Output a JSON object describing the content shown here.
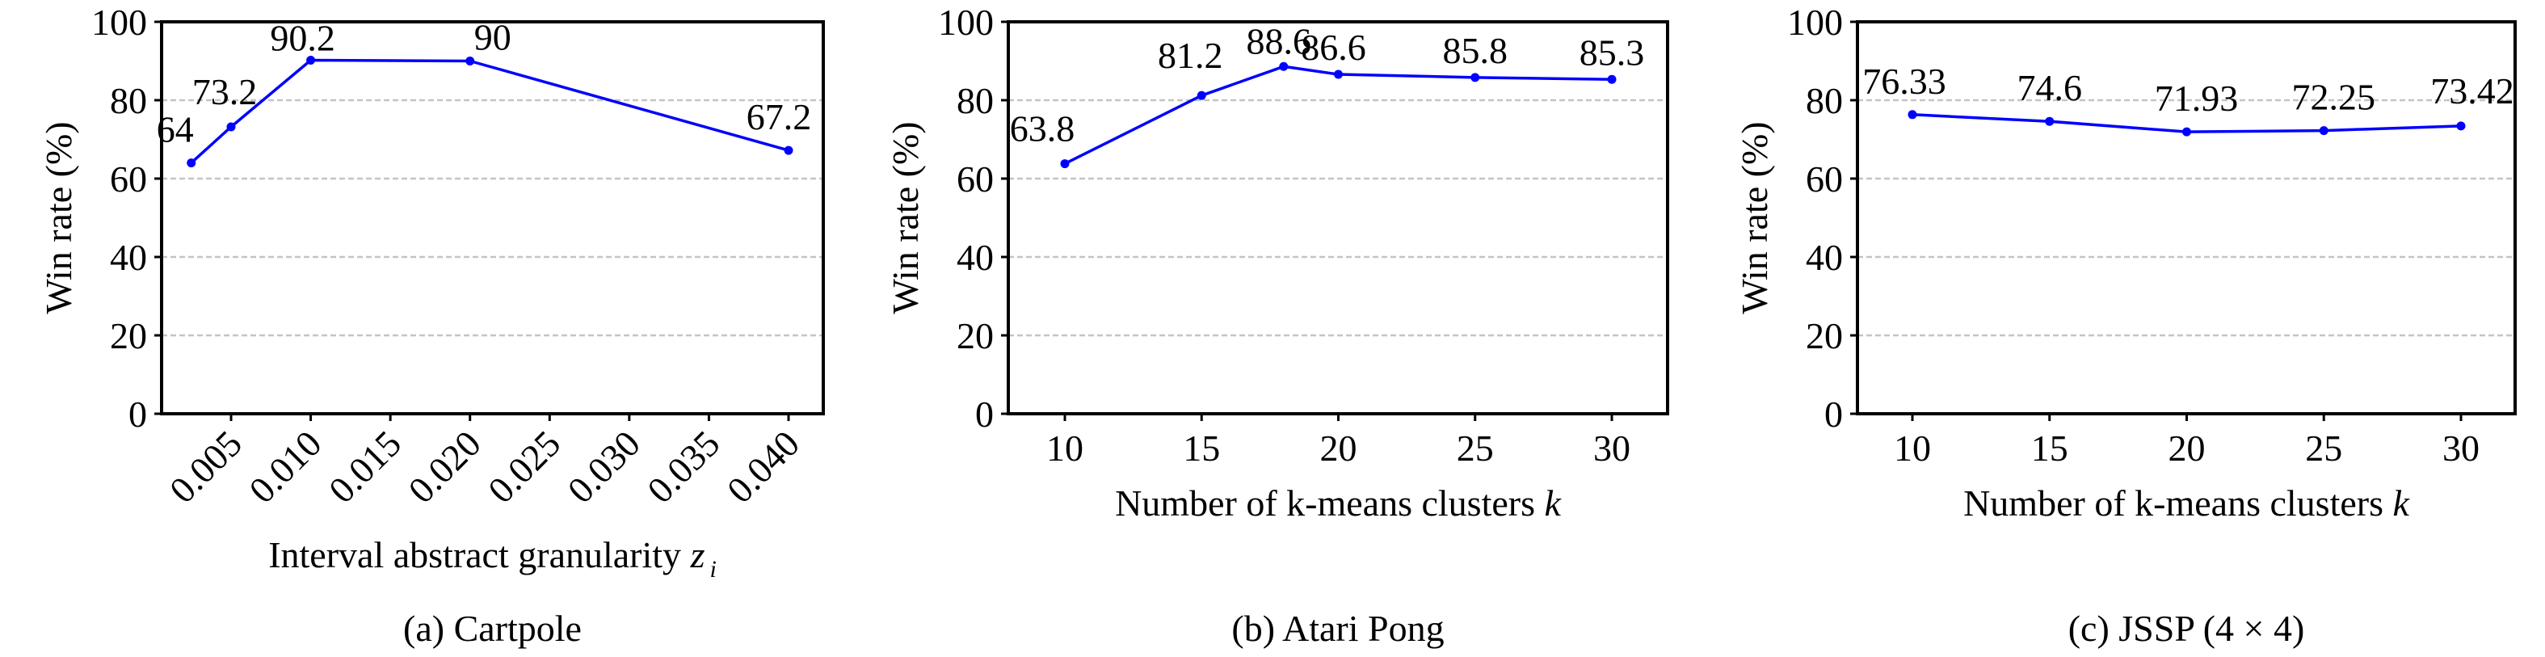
{
  "figure": {
    "panels": [
      {
        "id": "a",
        "caption": "(a) Cartpole"
      },
      {
        "id": "b",
        "caption": "(b) Atari Pong"
      },
      {
        "id": "c",
        "caption": "(c) JSSP (4 × 4)"
      }
    ]
  },
  "colors": {
    "series": "#0000ff",
    "grid": "#c4c4c4",
    "axis": "#000000"
  },
  "chart_data": [
    {
      "type": "line",
      "title": "(a) Cartpole",
      "xlabel": "Interval abstract granularity",
      "xlabel_math": "z",
      "xlabel_subscript": "i",
      "ylabel": "Win rate (%)",
      "ylim": [
        0,
        100
      ],
      "yticks": [
        0,
        20,
        40,
        60,
        80,
        100
      ],
      "xticks": [
        0.005,
        0.01,
        0.015,
        0.02,
        0.025,
        0.03,
        0.035,
        0.04
      ],
      "xtick_labels": [
        "0.005",
        "0.010",
        "0.015",
        "0.020",
        "0.025",
        "0.030",
        "0.035",
        "0.040"
      ],
      "xtick_rotation": 45,
      "grid": "y, dashed",
      "x": [
        0.0025,
        0.005,
        0.01,
        0.02,
        0.04
      ],
      "series": [
        {
          "name": "Win rate",
          "values": [
            64,
            73.2,
            90.2,
            90,
            67.2
          ],
          "labels": [
            "64",
            "73.2",
            "90.2",
            "90",
            "67.2"
          ]
        }
      ]
    },
    {
      "type": "line",
      "title": "(b) Atari Pong",
      "xlabel": "Number of k-means clusters",
      "xlabel_math": "k",
      "ylabel": "Win rate (%)",
      "ylim": [
        0,
        100
      ],
      "yticks": [
        0,
        20,
        40,
        60,
        80,
        100
      ],
      "xticks": [
        10,
        15,
        20,
        25,
        30
      ],
      "xtick_labels": [
        "10",
        "15",
        "20",
        "25",
        "30"
      ],
      "grid": "y, dashed",
      "x": [
        10,
        15,
        18,
        20,
        25,
        30
      ],
      "series": [
        {
          "name": "Win rate",
          "values": [
            63.8,
            81.2,
            88.6,
            86.6,
            85.8,
            85.3
          ],
          "labels": [
            "63.8",
            "81.2",
            "88.6",
            "86.6",
            "85.8",
            "85.3"
          ]
        }
      ]
    },
    {
      "type": "line",
      "title": "(c) JSSP (4 × 4)",
      "xlabel": "Number of k-means clusters",
      "xlabel_math": "k",
      "ylabel": "Win rate (%)",
      "ylim": [
        0,
        100
      ],
      "yticks": [
        0,
        20,
        40,
        60,
        80,
        100
      ],
      "xticks": [
        10,
        15,
        20,
        25,
        30
      ],
      "xtick_labels": [
        "10",
        "15",
        "20",
        "25",
        "30"
      ],
      "grid": "y, dashed",
      "x": [
        10,
        15,
        20,
        25,
        30
      ],
      "series": [
        {
          "name": "Win rate",
          "values": [
            76.33,
            74.6,
            71.93,
            72.25,
            73.42
          ],
          "labels": [
            "76.33",
            "74.6",
            "71.93",
            "72.25",
            "73.42"
          ]
        }
      ]
    }
  ]
}
